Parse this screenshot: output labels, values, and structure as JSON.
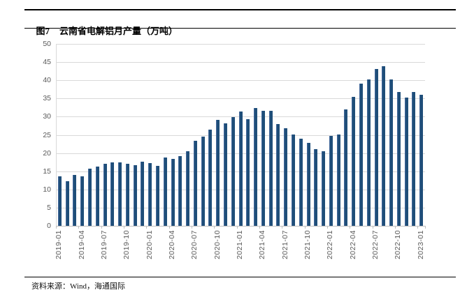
{
  "figure": {
    "tag": "图7",
    "title": "云南省电解铝月产量（万吨）"
  },
  "source": {
    "label": "资料来源：Wind，海通国际"
  },
  "colors": {
    "bar": "#1F4E79",
    "bar_edge_highlight": "#44699C",
    "gridline": "#D9D9D9",
    "axis_line": "#BFBFBF",
    "axis_label": "#595959",
    "rule": "#000000"
  },
  "chart_data": {
    "type": "bar",
    "title": "云南省电解铝月产量（万吨）",
    "categories": [
      "2019-01",
      "2019-02",
      "2019-03",
      "2019-04",
      "2019-05",
      "2019-06",
      "2019-07",
      "2019-08",
      "2019-09",
      "2019-10",
      "2019-11",
      "2019-12",
      "2020-01",
      "2020-02",
      "2020-03",
      "2020-04",
      "2020-05",
      "2020-06",
      "2020-07",
      "2020-08",
      "2020-09",
      "2020-10",
      "2020-11",
      "2020-12",
      "2021-01",
      "2021-02",
      "2021-03",
      "2021-04",
      "2021-05",
      "2021-06",
      "2021-07",
      "2021-08",
      "2021-09",
      "2021-10",
      "2021-11",
      "2021-12",
      "2022-01",
      "2022-02",
      "2022-03",
      "2022-04",
      "2022-05",
      "2022-06",
      "2022-07",
      "2022-08",
      "2022-09",
      "2022-10",
      "2022-11",
      "2022-12",
      "2023-01"
    ],
    "values": [
      13.6,
      12.2,
      14.0,
      13.7,
      15.7,
      16.2,
      17.0,
      17.4,
      17.4,
      17.0,
      16.7,
      17.6,
      17.2,
      16.5,
      18.8,
      18.4,
      19.2,
      20.5,
      23.3,
      24.5,
      26.5,
      29.1,
      28.2,
      29.8,
      31.4,
      29.3,
      32.3,
      31.7,
      31.6,
      28.0,
      26.9,
      25.2,
      23.9,
      22.9,
      21.1,
      20.5,
      24.8,
      25.1,
      32.0,
      35.5,
      39.0,
      40.3,
      43.1,
      43.9,
      40.3,
      36.8,
      35.2,
      36.7,
      36.0
    ],
    "x_tick_labels": [
      "2019-01",
      "2019-04",
      "2019-07",
      "2019-10",
      "2020-01",
      "2020-04",
      "2020-07",
      "2020-10",
      "2021-01",
      "2021-04",
      "2021-07",
      "2021-10",
      "2022-01",
      "2022-04",
      "2022-07",
      "2022-10",
      "2023-01"
    ],
    "x_tick_every": 3,
    "ylim": [
      0,
      50
    ],
    "y_tick_step": 5,
    "grid": true,
    "legend_position": "none",
    "xlabel": "",
    "ylabel": ""
  }
}
